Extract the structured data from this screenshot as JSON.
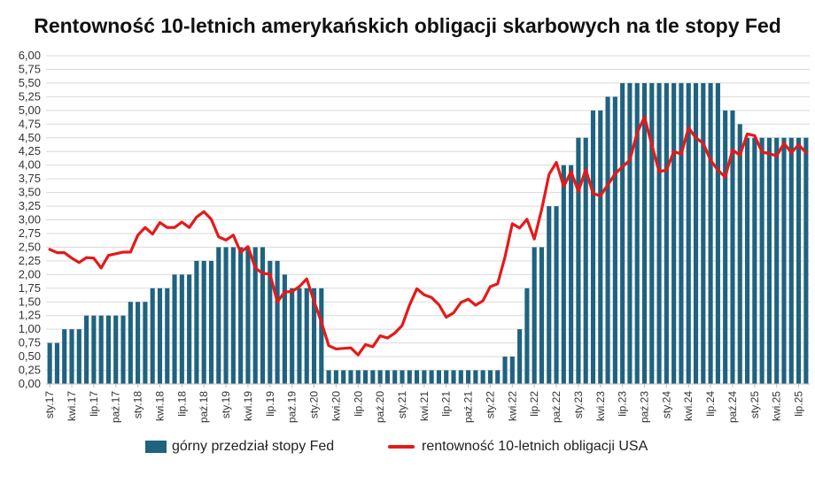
{
  "chart_data": {
    "type": "bar+line",
    "title": "Rentowność 10-letnich amerykańskich obligacji skarbowych na tle stopy Fed",
    "xlabel": "",
    "ylabel": "",
    "ylim": [
      0,
      6
    ],
    "yticks": [
      "0,00",
      "0,25",
      "0,50",
      "0,75",
      "1,00",
      "1,25",
      "1,50",
      "1,75",
      "2,00",
      "2,25",
      "2,50",
      "2,75",
      "3,00",
      "3,25",
      "3,50",
      "3,75",
      "4,00",
      "4,25",
      "4,50",
      "4,75",
      "5,00",
      "5,25",
      "5,50",
      "5,75",
      "6,00"
    ],
    "xtick_labels": [
      {
        "index": 0,
        "label": "sty.17"
      },
      {
        "index": 3,
        "label": "kwi.17"
      },
      {
        "index": 6,
        "label": "lip.17"
      },
      {
        "index": 9,
        "label": "paź.17"
      },
      {
        "index": 12,
        "label": "sty.18"
      },
      {
        "index": 15,
        "label": "kwi.18"
      },
      {
        "index": 18,
        "label": "lip.18"
      },
      {
        "index": 21,
        "label": "paź.18"
      },
      {
        "index": 24,
        "label": "sty.19"
      },
      {
        "index": 27,
        "label": "kwi.19"
      },
      {
        "index": 30,
        "label": "lip.19"
      },
      {
        "index": 33,
        "label": "paź.19"
      },
      {
        "index": 36,
        "label": "sty.20"
      },
      {
        "index": 39,
        "label": "kwi.20"
      },
      {
        "index": 42,
        "label": "lip.20"
      },
      {
        "index": 45,
        "label": "paź.20"
      },
      {
        "index": 48,
        "label": "sty.21"
      },
      {
        "index": 51,
        "label": "kwi.21"
      },
      {
        "index": 54,
        "label": "lip.21"
      },
      {
        "index": 57,
        "label": "paź.21"
      },
      {
        "index": 60,
        "label": "sty.22"
      },
      {
        "index": 63,
        "label": "kwi.22"
      },
      {
        "index": 66,
        "label": "lip.22"
      },
      {
        "index": 69,
        "label": "paź.22"
      },
      {
        "index": 72,
        "label": "sty.23"
      },
      {
        "index": 75,
        "label": "kwi.23"
      },
      {
        "index": 78,
        "label": "lip.23"
      },
      {
        "index": 81,
        "label": "paź.23"
      },
      {
        "index": 84,
        "label": "sty.24"
      },
      {
        "index": 87,
        "label": "kwi.24"
      },
      {
        "index": 90,
        "label": "lip.24"
      },
      {
        "index": 93,
        "label": "paź.24"
      },
      {
        "index": 96,
        "label": "sty.25"
      },
      {
        "index": 99,
        "label": "kwi.25"
      },
      {
        "index": 102,
        "label": "lip.25"
      }
    ],
    "series": [
      {
        "name": "górny przedział stopy Fed",
        "type": "bar",
        "color": "#1f6380",
        "values": [
          0.75,
          0.75,
          1.0,
          1.0,
          1.0,
          1.25,
          1.25,
          1.25,
          1.25,
          1.25,
          1.25,
          1.5,
          1.5,
          1.5,
          1.75,
          1.75,
          1.75,
          2.0,
          2.0,
          2.0,
          2.25,
          2.25,
          2.25,
          2.5,
          2.5,
          2.5,
          2.5,
          2.5,
          2.5,
          2.5,
          2.25,
          2.25,
          2.0,
          1.75,
          1.75,
          1.75,
          1.75,
          1.75,
          0.25,
          0.25,
          0.25,
          0.25,
          0.25,
          0.25,
          0.25,
          0.25,
          0.25,
          0.25,
          0.25,
          0.25,
          0.25,
          0.25,
          0.25,
          0.25,
          0.25,
          0.25,
          0.25,
          0.25,
          0.25,
          0.25,
          0.25,
          0.25,
          0.5,
          0.5,
          1.0,
          1.75,
          2.5,
          2.5,
          3.25,
          3.25,
          4.0,
          4.0,
          4.5,
          4.5,
          5.0,
          5.0,
          5.25,
          5.25,
          5.5,
          5.5,
          5.5,
          5.5,
          5.5,
          5.5,
          5.5,
          5.5,
          5.5,
          5.5,
          5.5,
          5.5,
          5.5,
          5.5,
          5.0,
          5.0,
          4.75,
          4.5,
          4.5,
          4.5,
          4.5,
          4.5,
          4.5,
          4.5,
          4.5,
          4.5
        ]
      },
      {
        "name": "rentowność 10-letnich obligacji USA",
        "type": "line",
        "color": "#e61919",
        "values": [
          2.46,
          2.4,
          2.4,
          2.3,
          2.22,
          2.31,
          2.3,
          2.12,
          2.35,
          2.38,
          2.41,
          2.41,
          2.72,
          2.86,
          2.74,
          2.95,
          2.86,
          2.86,
          2.96,
          2.86,
          3.05,
          3.15,
          3.01,
          2.69,
          2.63,
          2.72,
          2.41,
          2.51,
          2.12,
          2.02,
          2.01,
          1.5,
          1.68,
          1.69,
          1.78,
          1.92,
          1.51,
          1.13,
          0.7,
          0.64,
          0.65,
          0.66,
          0.53,
          0.72,
          0.68,
          0.88,
          0.84,
          0.93,
          1.07,
          1.44,
          1.74,
          1.63,
          1.58,
          1.45,
          1.22,
          1.3,
          1.49,
          1.55,
          1.44,
          1.52,
          1.78,
          1.83,
          2.32,
          2.93,
          2.85,
          3.01,
          2.65,
          3.19,
          3.83,
          4.05,
          3.61,
          3.88,
          3.52,
          3.92,
          3.48,
          3.44,
          3.64,
          3.84,
          3.97,
          4.09,
          4.59,
          4.88,
          4.37,
          3.88,
          3.91,
          4.25,
          4.2,
          4.68,
          4.5,
          4.4,
          4.09,
          3.91,
          3.78,
          4.28,
          4.18,
          4.57,
          4.54,
          4.24,
          4.21,
          4.17,
          4.4,
          4.23,
          4.37,
          4.23
        ]
      }
    ],
    "legend_position": "bottom",
    "grid": true
  }
}
